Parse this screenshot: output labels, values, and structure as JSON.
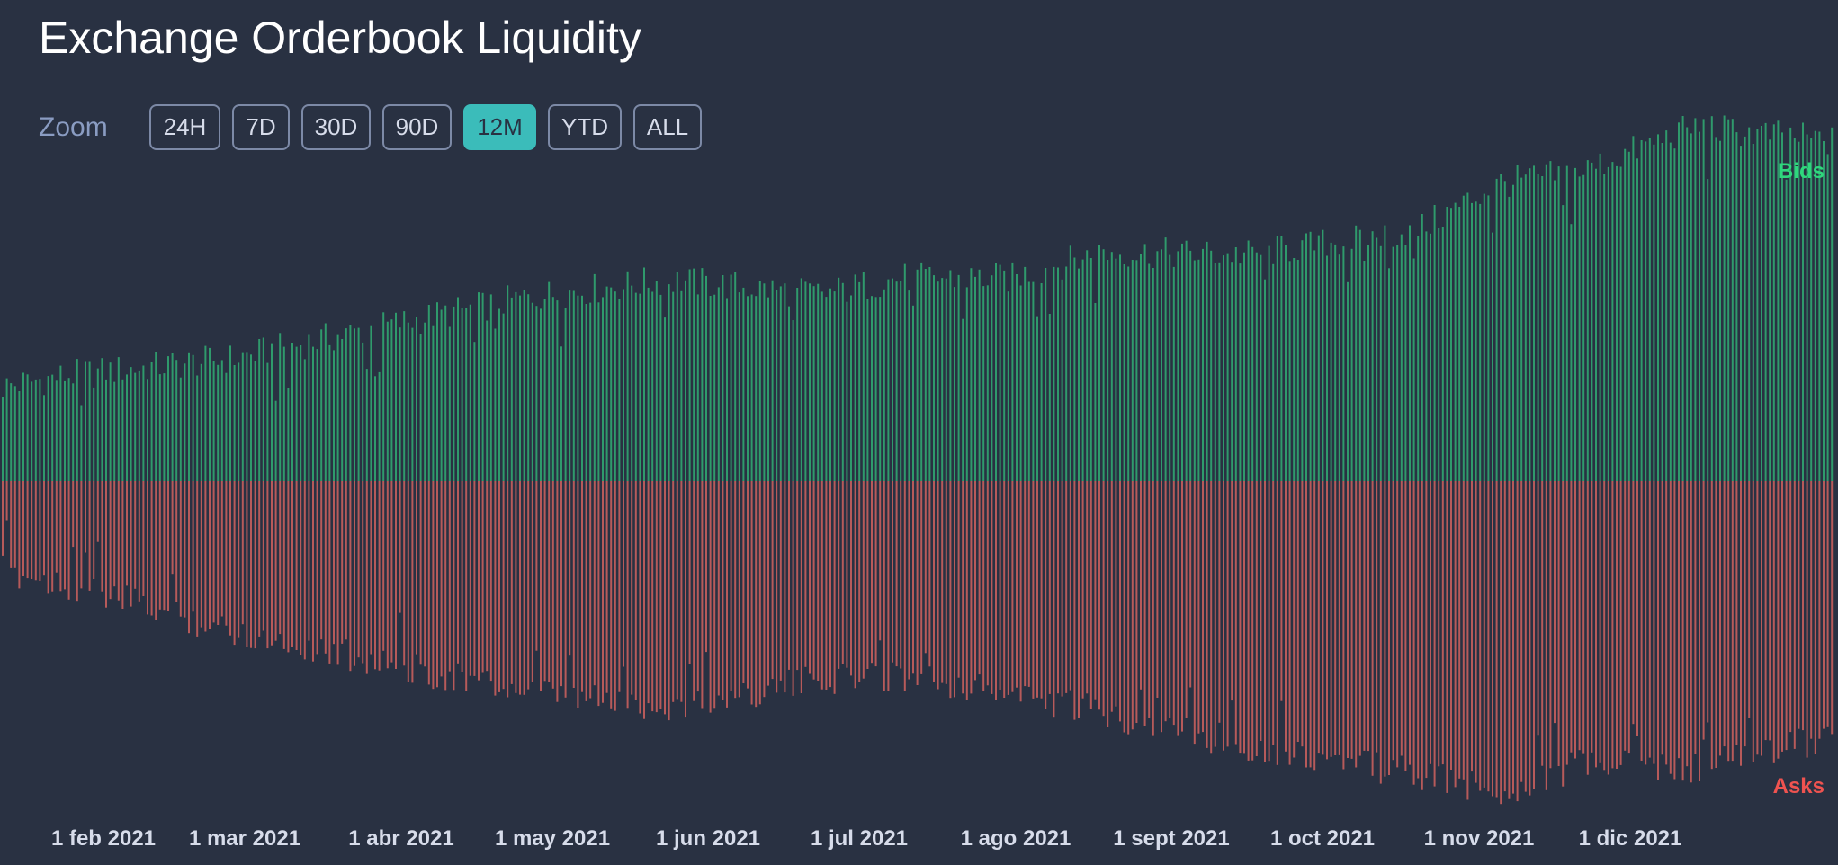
{
  "title": "Exchange Orderbook Liquidity",
  "zoom": {
    "label": "Zoom",
    "options": [
      "24H",
      "7D",
      "30D",
      "90D",
      "12M",
      "YTD",
      "ALL"
    ],
    "selected": "12M"
  },
  "colors": {
    "background": "#293142",
    "bids": "#2f9a6c",
    "asks": "#b75a5a",
    "bids_label": "#2fd77d",
    "asks_label": "#ef5350",
    "accent": "#3bbcba"
  },
  "chart_data": {
    "type": "bar",
    "title": "Exchange Orderbook Liquidity",
    "x_ticks": [
      "1 feb 2021",
      "1 mar 2021",
      "1 abr 2021",
      "1 may 2021",
      "1 jun 2021",
      "1 jul 2021",
      "1 ago 2021",
      "1 sept 2021",
      "1 oct 2021",
      "1 nov 2021",
      "1 dic 2021"
    ],
    "legend": {
      "bids": "Bids",
      "asks": "Asks"
    },
    "grid": false,
    "x_range": [
      "2021-01-20",
      "2022-01-08"
    ],
    "series": [
      {
        "name": "Bids",
        "direction": "up",
        "anchors": [
          [
            0,
            100
          ],
          [
            12,
            112
          ],
          [
            42,
            130
          ],
          [
            67,
            162
          ],
          [
            95,
            195
          ],
          [
            120,
            213
          ],
          [
            148,
            198
          ],
          [
            162,
            215
          ],
          [
            182,
            215
          ],
          [
            198,
            242
          ],
          [
            225,
            240
          ],
          [
            255,
            265
          ],
          [
            270,
            315
          ],
          [
            285,
            328
          ],
          [
            305,
            375
          ],
          [
            330,
            360
          ]
        ]
      },
      {
        "name": "Asks",
        "direction": "down",
        "anchors": [
          [
            0,
            95
          ],
          [
            12,
            110
          ],
          [
            42,
            160
          ],
          [
            67,
            190
          ],
          [
            95,
            225
          ],
          [
            120,
            240
          ],
          [
            148,
            210
          ],
          [
            162,
            205
          ],
          [
            182,
            225
          ],
          [
            198,
            245
          ],
          [
            225,
            280
          ],
          [
            255,
            310
          ],
          [
            270,
            330
          ],
          [
            285,
            300
          ],
          [
            305,
            305
          ],
          [
            330,
            270
          ]
        ]
      }
    ]
  }
}
